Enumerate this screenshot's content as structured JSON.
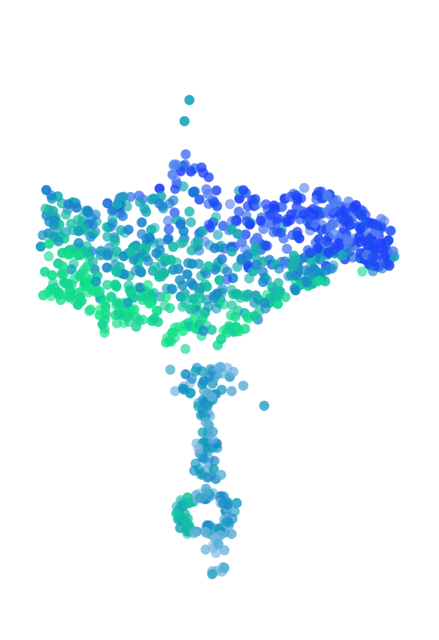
{
  "chart_data": {
    "type": "scatter",
    "title": "",
    "xlabel": "",
    "ylabel": "",
    "axes_visible": false,
    "grid": false,
    "legend": "none",
    "colors": {
      "blue": "#1f3cff",
      "teal": "#16a3b8",
      "green": "#14e884",
      "light_blue": "#7eb6e6"
    },
    "clusters": [
      {
        "name": "dome",
        "shape": "band",
        "x_range": [
          52,
          486
        ],
        "y_top": [
          162,
          232
        ],
        "y_bottom": [
          300,
          452
        ],
        "count": 860
      },
      {
        "name": "stem",
        "shape": "column",
        "y_range": [
          450,
          590
        ],
        "x_center": 256,
        "count": 95
      },
      {
        "name": "base",
        "shape": "ring",
        "x_center": 252,
        "y_center": 632,
        "rx": 34,
        "ry": 28,
        "count": 85
      },
      {
        "name": "tail",
        "shape": "column",
        "y_range": [
          656,
          708
        ],
        "x_center": 266,
        "count": 14
      }
    ],
    "outliers": [
      {
        "x": 233,
        "y": 123
      },
      {
        "x": 227,
        "y": 149
      },
      {
        "x": 325,
        "y": 499
      },
      {
        "x": 261,
        "y": 706
      }
    ]
  }
}
